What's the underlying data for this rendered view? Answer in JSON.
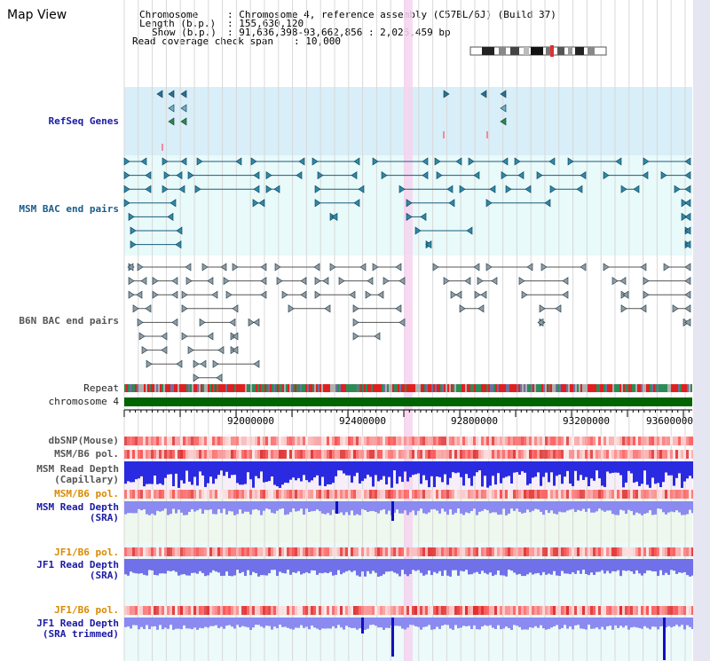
{
  "view": {
    "title": "Map View"
  },
  "info": {
    "chromosome_label": "Chromosome",
    "chromosome_value": ": Chromosome 4, reference assembly (C57BL/6J) (Build 37)",
    "length_label": "Length (b.p.)",
    "length_value": ": 155,630,120",
    "show_label": "Show (b.p.)",
    "show_value": ": 91,636,398-93,662,856 : 2,026,459 bp",
    "read_cov_label": "Read coverage check span",
    "read_cov_value": ": 10,000"
  },
  "tracks": {
    "refseq": "RefSeq Genes",
    "msm_bac": "MSM BAC end pairs",
    "b6n_bac": "B6N BAC end pairs",
    "repeat": "Repeat",
    "chromosome": "chromosome 4",
    "dbsnp": "dbSNP(Mouse)",
    "msm_b6_pol_1": "MSM/B6 pol.",
    "msm_read_depth_cap_1": "MSM Read Depth",
    "msm_read_depth_cap_2": "(Capillary)",
    "msm_b6_pol_2": "MSM/B6 pol.",
    "msm_read_depth_sra_1": "MSM Read Depth",
    "msm_read_depth_sra_2": "(SRA)",
    "jf1_b6_pol_1": "JF1/B6 pol.",
    "jf1_read_depth_sra_1": "JF1 Read Depth",
    "jf1_read_depth_sra_2": "(SRA)",
    "jf1_b6_pol_2": "JF1/B6 pol.",
    "jf1_read_depth_trim_1": "JF1 Read Depth",
    "jf1_read_depth_trim_2": "(SRA trimmed)"
  },
  "axis": {
    "ticks": [
      "92000000",
      "92400000",
      "92800000",
      "93200000",
      "93600000"
    ]
  },
  "colors": {
    "refseq_bg": "#d8eef8",
    "bac_bg": "#e8fafa",
    "highlight": "#f6d4ef",
    "chromosome_bar": "#006400",
    "msm_label": "#1a5d8a",
    "b6n_label": "#555555",
    "pol_label": "#d98a00",
    "depth_label": "#1a1aa6"
  }
}
